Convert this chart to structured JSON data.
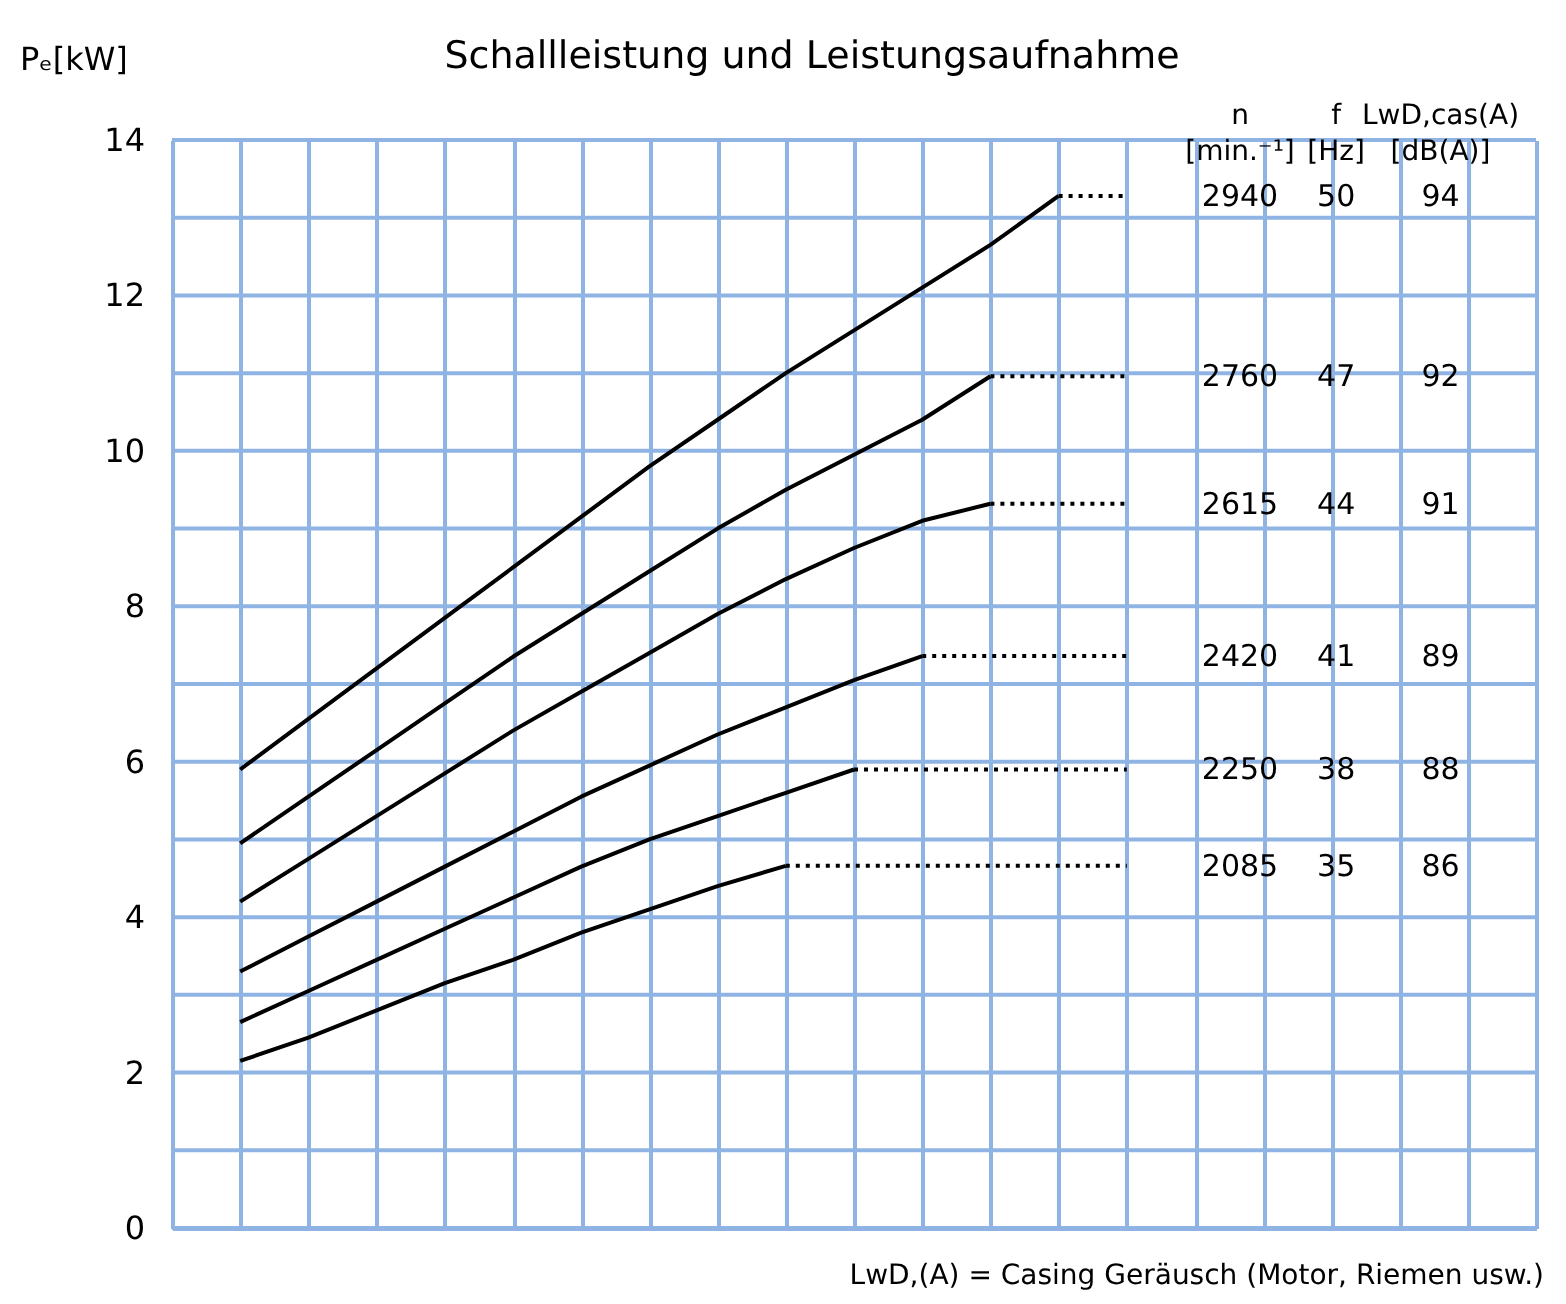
{
  "chart_data": {
    "type": "line",
    "title": "Schallleistung und Leistungsaufnahme",
    "ylabel": "Pₑ[kW]",
    "categories": [
      null,
      null,
      null,
      null,
      null,
      null,
      null,
      null,
      null,
      null,
      null,
      null,
      null,
      null,
      null,
      null,
      null,
      null,
      null,
      null,
      null
    ],
    "ylim": [
      0,
      14
    ],
    "yticks": [
      0,
      {
        "value": 1,
        "label": null
      },
      2,
      {
        "value": 3,
        "label": null
      },
      4,
      {
        "value": 5,
        "label": null
      },
      6,
      {
        "value": 7,
        "label": null
      },
      8,
      {
        "value": 9,
        "label": null
      },
      10,
      {
        "value": 11,
        "label": null
      },
      12,
      {
        "value": 13,
        "label": null
      },
      14
    ],
    "grid": true,
    "tick_labels": "y",
    "series": [
      {
        "color": "#000000",
        "line_style": "solid",
        "values": [
          null,
          5.9,
          6.55,
          7.2,
          7.85,
          8.5,
          9.15,
          9.8,
          10.4,
          11.0,
          11.55,
          12.1,
          12.65,
          13.28,
          null,
          null,
          null,
          null,
          null,
          null,
          null
        ]
      },
      {
        "color": "#000000",
        "line_style": "dotted",
        "values": [
          null,
          null,
          null,
          null,
          null,
          null,
          null,
          null,
          null,
          null,
          null,
          null,
          null,
          13.28,
          13.28,
          null,
          null,
          null,
          null,
          null,
          null
        ]
      },
      {
        "color": "#000000",
        "line_style": "solid",
        "values": [
          null,
          4.95,
          5.55,
          6.15,
          6.75,
          7.35,
          7.9,
          8.45,
          9.0,
          9.5,
          9.95,
          10.4,
          10.96,
          null,
          null,
          null,
          null,
          null,
          null,
          null,
          null
        ]
      },
      {
        "color": "#000000",
        "line_style": "dotted",
        "values": [
          null,
          null,
          null,
          null,
          null,
          null,
          null,
          null,
          null,
          null,
          null,
          null,
          10.96,
          10.96,
          10.96,
          null,
          null,
          null,
          null,
          null,
          null
        ]
      },
      {
        "color": "#000000",
        "line_style": "solid",
        "values": [
          null,
          4.2,
          4.75,
          5.3,
          5.85,
          6.4,
          6.9,
          7.4,
          7.9,
          8.35,
          8.75,
          9.1,
          9.32,
          null,
          null,
          null,
          null,
          null,
          null,
          null,
          null
        ]
      },
      {
        "color": "#000000",
        "line_style": "dotted",
        "values": [
          null,
          null,
          null,
          null,
          null,
          null,
          null,
          null,
          null,
          null,
          null,
          null,
          9.32,
          9.32,
          9.32,
          null,
          null,
          null,
          null,
          null,
          null
        ]
      },
      {
        "color": "#000000",
        "line_style": "solid",
        "values": [
          null,
          3.3,
          3.75,
          4.2,
          4.65,
          5.1,
          5.55,
          5.95,
          6.35,
          6.7,
          7.05,
          7.36,
          null,
          null,
          null,
          null,
          null,
          null,
          null,
          null,
          null
        ]
      },
      {
        "color": "#000000",
        "line_style": "dotted",
        "values": [
          null,
          null,
          null,
          null,
          null,
          null,
          null,
          null,
          null,
          null,
          null,
          7.36,
          7.36,
          7.36,
          7.36,
          null,
          null,
          null,
          null,
          null,
          null
        ]
      },
      {
        "color": "#000000",
        "line_style": "solid",
        "values": [
          null,
          2.65,
          3.05,
          3.45,
          3.85,
          4.25,
          4.65,
          5.0,
          5.3,
          5.6,
          5.9,
          null,
          null,
          null,
          null,
          null,
          null,
          null,
          null,
          null,
          null
        ]
      },
      {
        "color": "#000000",
        "line_style": "dotted",
        "values": [
          null,
          null,
          null,
          null,
          null,
          null,
          null,
          null,
          null,
          null,
          5.9,
          5.9,
          5.9,
          5.9,
          5.9,
          null,
          null,
          null,
          null,
          null,
          null
        ]
      },
      {
        "color": "#000000",
        "line_style": "solid",
        "values": [
          null,
          2.15,
          2.45,
          2.8,
          3.15,
          3.45,
          3.8,
          4.1,
          4.4,
          4.66,
          null,
          null,
          null,
          null,
          null,
          null,
          null,
          null,
          null,
          null,
          null
        ]
      },
      {
        "color": "#000000",
        "line_style": "dotted",
        "values": [
          null,
          null,
          null,
          null,
          null,
          null,
          null,
          null,
          null,
          4.66,
          4.66,
          4.66,
          4.66,
          4.66,
          4.66,
          null,
          null,
          null,
          null,
          null,
          null
        ]
      }
    ],
    "annotations": [
      "n",
      "[min.⁻¹]",
      "f",
      "[Hz]",
      "LwD,cas(A)",
      "[dB(A)]",
      "LwD,(A) = Casing Geräusch (Motor, Riemen usw.)",
      "2940",
      "50",
      "94",
      "2760",
      "47",
      "92",
      "2615",
      "44",
      "91",
      "2420",
      "41",
      "89",
      "2250",
      "38",
      "88",
      "2085",
      "35",
      "86"
    ]
  }
}
